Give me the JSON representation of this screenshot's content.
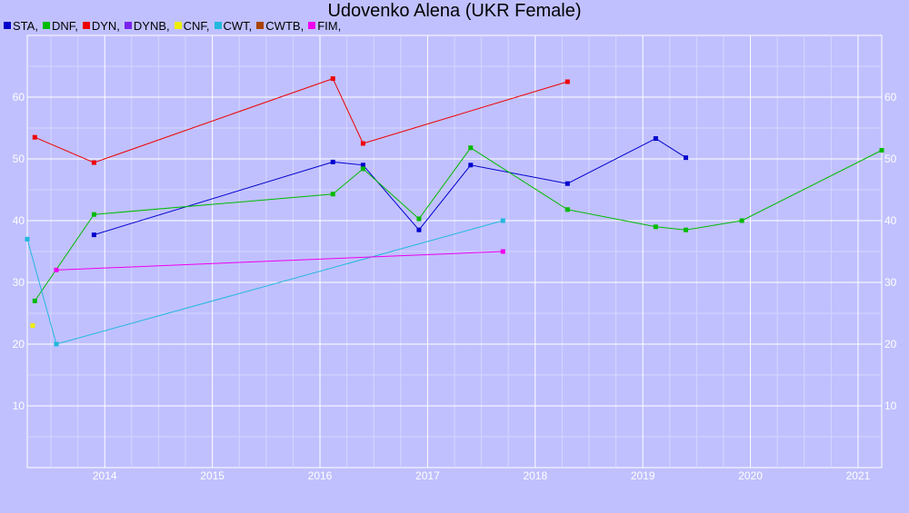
{
  "chart_data": {
    "type": "line",
    "title": "Udovenko Alena (UKR Female)",
    "xlabel": "",
    "ylabel": "",
    "xlim": [
      2013.28,
      2021.22
    ],
    "ylim": [
      0,
      70
    ],
    "x_ticks": [
      "2014",
      "2015",
      "2016",
      "2017",
      "2018",
      "2019",
      "2020",
      "2021"
    ],
    "y_ticks": [
      "10",
      "20",
      "30",
      "40",
      "50",
      "60"
    ],
    "grid": true,
    "legend_position": "top-left",
    "legend": [
      {
        "label": "STA,",
        "color": "#0000cc"
      },
      {
        "label": "DNF,",
        "color": "#00bb00"
      },
      {
        "label": "DYN,",
        "color": "#ee0000"
      },
      {
        "label": "DYNB,",
        "color": "#7a22ee"
      },
      {
        "label": "CNF,",
        "color": "#eeee00"
      },
      {
        "label": "CWT,",
        "color": "#22b8dd"
      },
      {
        "label": "CWTB,",
        "color": "#aa4400"
      },
      {
        "label": "FIM,",
        "color": "#ee00ee"
      }
    ],
    "series": [
      {
        "name": "STA",
        "color": "#0000cc",
        "points": [
          [
            2013.9,
            37.7
          ],
          [
            2016.12,
            49.5
          ],
          [
            2016.4,
            49.0
          ],
          [
            2016.92,
            38.5
          ],
          [
            2017.4,
            49.0
          ],
          [
            2018.3,
            46.0
          ],
          [
            2019.12,
            53.3
          ],
          [
            2019.4,
            50.2
          ]
        ]
      },
      {
        "name": "DNF",
        "color": "#00bb00",
        "points": [
          [
            2013.35,
            27.0
          ],
          [
            2013.9,
            41.0
          ],
          [
            2016.12,
            44.3
          ],
          [
            2016.4,
            48.4
          ],
          [
            2016.92,
            40.3
          ],
          [
            2017.4,
            51.8
          ],
          [
            2018.3,
            41.8
          ],
          [
            2019.12,
            39.0
          ],
          [
            2019.4,
            38.5
          ],
          [
            2019.92,
            40.0
          ],
          [
            2021.22,
            51.4
          ]
        ]
      },
      {
        "name": "DYN",
        "color": "#ee0000",
        "points": [
          [
            2013.35,
            53.5
          ],
          [
            2013.9,
            49.4
          ],
          [
            2016.12,
            63.0
          ],
          [
            2016.4,
            52.5
          ],
          [
            2018.3,
            62.5
          ]
        ]
      },
      {
        "name": "DYNB",
        "color": "#7a22ee",
        "points": []
      },
      {
        "name": "CNF",
        "color": "#eeee00",
        "points": [
          [
            2013.33,
            23.0
          ]
        ]
      },
      {
        "name": "CWT",
        "color": "#22b8dd",
        "points": [
          [
            2013.28,
            37.0
          ],
          [
            2013.55,
            20.0
          ],
          [
            2017.7,
            40.0
          ]
        ]
      },
      {
        "name": "CWTB",
        "color": "#aa4400",
        "points": []
      },
      {
        "name": "FIM",
        "color": "#ee00ee",
        "points": [
          [
            2013.55,
            32.0
          ],
          [
            2017.7,
            35.0
          ]
        ]
      }
    ]
  }
}
